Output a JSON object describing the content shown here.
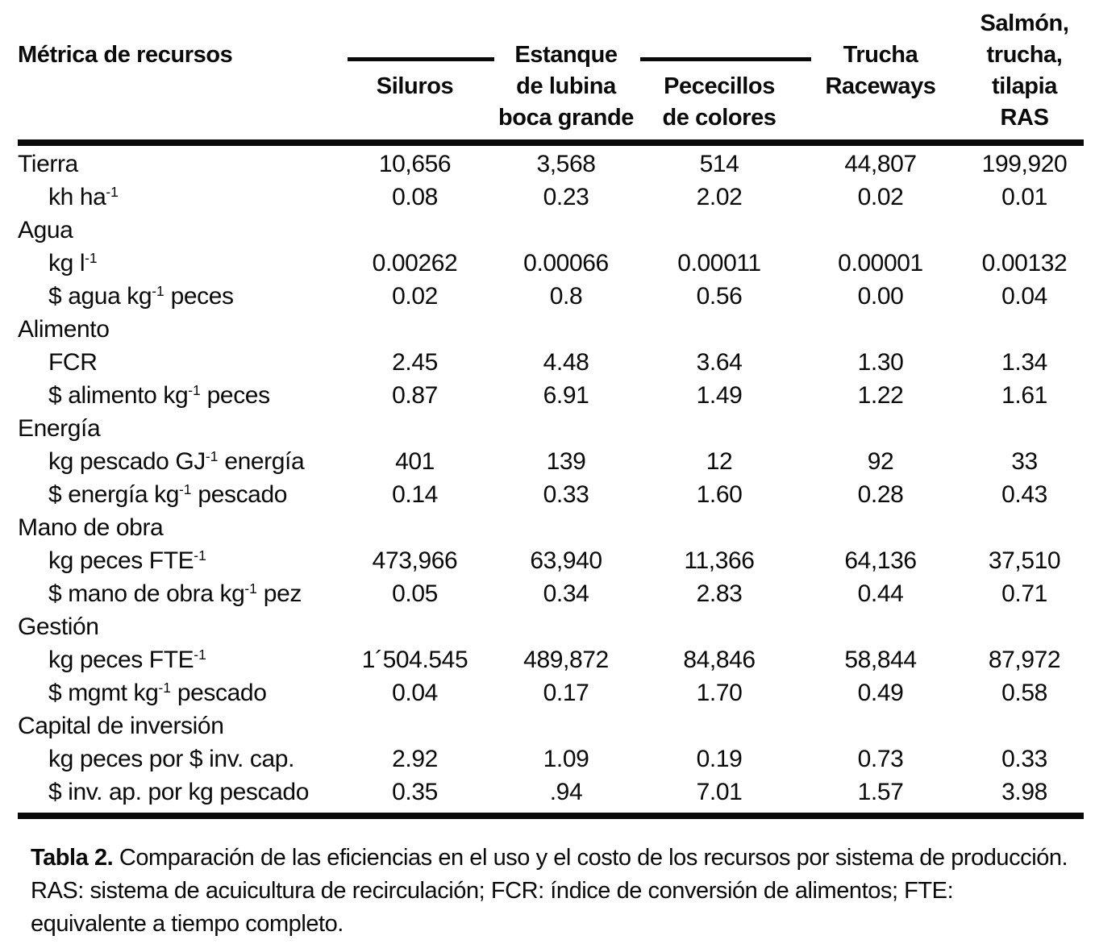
{
  "table": {
    "metric_header": "Métrica de recursos",
    "spanner_word": "Estanque",
    "columns": [
      {
        "id": "siluros",
        "lines": [
          "",
          "",
          "Siluros",
          ""
        ]
      },
      {
        "id": "estanque-lubina",
        "lines": [
          "",
          "Estanque",
          "de lubina",
          "boca grande"
        ]
      },
      {
        "id": "pececillos",
        "lines": [
          "",
          "",
          "Pececillos",
          "de colores"
        ]
      },
      {
        "id": "trucha-raceways",
        "lines": [
          "",
          "Trucha",
          "Raceways",
          ""
        ]
      },
      {
        "id": "salmon-ras",
        "lines": [
          "Salmón,",
          "trucha,",
          "tilapia",
          "RAS"
        ]
      }
    ],
    "rows": [
      {
        "label": "Tierra",
        "indent": false,
        "values": [
          "10,656",
          "3,568",
          "514",
          "44,807",
          "199,920"
        ]
      },
      {
        "label": "kh ha^-1^",
        "indent": true,
        "values": [
          "0.08",
          "0.23",
          "2.02",
          "0.02",
          "0.01"
        ]
      },
      {
        "label": "Agua",
        "indent": false,
        "values": [
          "",
          "",
          "",
          "",
          ""
        ]
      },
      {
        "label": "kg l^-1^",
        "indent": true,
        "values": [
          "0.00262",
          "0.00066",
          "0.00011",
          "0.00001",
          "0.00132"
        ]
      },
      {
        "label": "$ agua kg^-1^ peces",
        "indent": true,
        "values": [
          "0.02",
          "0.8",
          "0.56",
          "0.00",
          "0.04"
        ]
      },
      {
        "label": "Alimento",
        "indent": false,
        "values": [
          "",
          "",
          "",
          "",
          ""
        ]
      },
      {
        "label": "FCR",
        "indent": true,
        "values": [
          "2.45",
          "4.48",
          "3.64",
          "1.30",
          "1.34"
        ]
      },
      {
        "label": "$ alimento kg^-1^ peces",
        "indent": true,
        "values": [
          "0.87",
          "6.91",
          "1.49",
          "1.22",
          "1.61"
        ]
      },
      {
        "label": "Energía",
        "indent": false,
        "values": [
          "",
          "",
          "",
          "",
          ""
        ]
      },
      {
        "label": "kg pescado GJ^-1^ energía",
        "indent": true,
        "values": [
          "401",
          "139",
          "12",
          "92",
          "33"
        ]
      },
      {
        "label": "$ energía kg^-1^ pescado",
        "indent": true,
        "values": [
          "0.14",
          "0.33",
          "1.60",
          "0.28",
          "0.43"
        ]
      },
      {
        "label": "Mano de obra",
        "indent": false,
        "values": [
          "",
          "",
          "",
          "",
          ""
        ]
      },
      {
        "label": "kg peces FTE^-1^",
        "indent": true,
        "values": [
          "473,966",
          "63,940",
          "11,366",
          "64,136",
          "37,510"
        ]
      },
      {
        "label": "$ mano de obra kg^-1^ pez",
        "indent": true,
        "values": [
          "0.05",
          "0.34",
          "2.83",
          "0.44",
          "0.71"
        ]
      },
      {
        "label": "Gestión",
        "indent": false,
        "values": [
          "",
          "",
          "",
          "",
          ""
        ]
      },
      {
        "label": "kg peces FTE^-1^",
        "indent": true,
        "values": [
          "1´504.545",
          "489,872",
          "84,846",
          "58,844",
          "87,972"
        ]
      },
      {
        "label": "$ mgmt kg^-1^ pescado",
        "indent": true,
        "values": [
          "0.04",
          "0.17",
          "1.70",
          "0.49",
          "0.58"
        ]
      },
      {
        "label": "Capital de inversión",
        "indent": false,
        "values": [
          "",
          "",
          "",
          "",
          ""
        ]
      },
      {
        "label": "kg peces por $ inv. cap.",
        "indent": true,
        "values": [
          "2.92",
          "1.09",
          "0.19",
          "0.73",
          "0.33"
        ]
      },
      {
        "label": "$ inv. ap. por kg pescado",
        "indent": true,
        "values": [
          "0.35",
          ".94",
          "7.01",
          "1.57",
          "3.98"
        ]
      }
    ]
  },
  "caption": {
    "label": "Tabla 2.",
    "text": "Comparación de las eficiencias en el uso y el costo de los recursos por sistema de producción. RAS: sistema de acuicultura de recirculación; FCR: índice de conversión de alimentos; FTE: equivalente a tiempo completo."
  }
}
